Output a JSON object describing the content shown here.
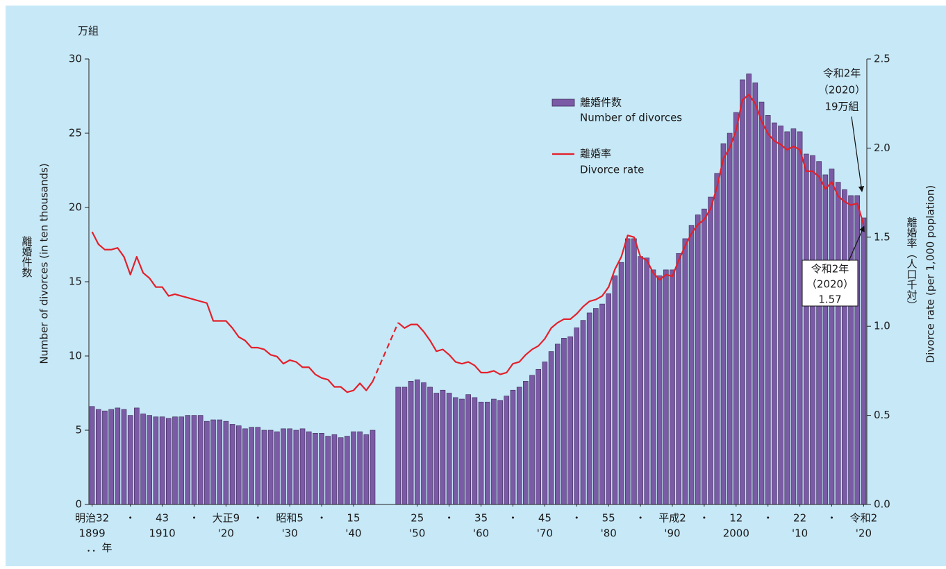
{
  "chart_data": {
    "type": "combo",
    "unit_label": "万組",
    "y_title_ja": "離婚件数",
    "y_title_en": "Number of divorces (in ten thousands)",
    "y2_title_ja": "離婚率（人口千対）",
    "y2_title_en": "Divorce rate (per 1,000 poplation)",
    "x_unit": "．．年",
    "x": [
      1899,
      1900,
      1901,
      1902,
      1903,
      1904,
      1905,
      1906,
      1907,
      1908,
      1909,
      1910,
      1911,
      1912,
      1913,
      1914,
      1915,
      1916,
      1917,
      1918,
      1919,
      1920,
      1921,
      1922,
      1923,
      1924,
      1925,
      1926,
      1927,
      1928,
      1929,
      1930,
      1931,
      1932,
      1933,
      1934,
      1935,
      1936,
      1937,
      1938,
      1939,
      1940,
      1941,
      1942,
      1943,
      1944,
      1945,
      1946,
      1947,
      1948,
      1949,
      1950,
      1951,
      1952,
      1953,
      1954,
      1955,
      1956,
      1957,
      1958,
      1959,
      1960,
      1961,
      1962,
      1963,
      1964,
      1965,
      1966,
      1967,
      1968,
      1969,
      1970,
      1971,
      1972,
      1973,
      1974,
      1975,
      1976,
      1977,
      1978,
      1979,
      1980,
      1981,
      1982,
      1983,
      1984,
      1985,
      1986,
      1987,
      1988,
      1989,
      1990,
      1991,
      1992,
      1993,
      1994,
      1995,
      1996,
      1997,
      1998,
      1999,
      2000,
      2001,
      2002,
      2003,
      2004,
      2005,
      2006,
      2007,
      2008,
      2009,
      2010,
      2011,
      2012,
      2013,
      2014,
      2015,
      2016,
      2017,
      2018,
      2019,
      2020
    ],
    "xlim": [
      1898.5,
      2020.5
    ],
    "xticks": [
      {
        "value": 1899,
        "label": "明治32"
      },
      {
        "value": 1905,
        "label": "・"
      },
      {
        "value": 1910,
        "label": "43"
      },
      {
        "value": 1915,
        "label": "・"
      },
      {
        "value": 1920,
        "label": "大正9"
      },
      {
        "value": 1925,
        "label": "・"
      },
      {
        "value": 1930,
        "label": "昭和5"
      },
      {
        "value": 1935,
        "label": "・"
      },
      {
        "value": 1940,
        "label": "15"
      },
      {
        "value": 1950,
        "label": "25"
      },
      {
        "value": 1955,
        "label": "・"
      },
      {
        "value": 1960,
        "label": "35"
      },
      {
        "value": 1965,
        "label": "・"
      },
      {
        "value": 1970,
        "label": "45"
      },
      {
        "value": 1975,
        "label": "・"
      },
      {
        "value": 1980,
        "label": "55"
      },
      {
        "value": 1985,
        "label": "・"
      },
      {
        "value": 1990,
        "label": "平成2"
      },
      {
        "value": 1995,
        "label": "・"
      },
      {
        "value": 2000,
        "label": "12"
      },
      {
        "value": 2005,
        "label": "・"
      },
      {
        "value": 2010,
        "label": "22"
      },
      {
        "value": 2015,
        "label": "・"
      },
      {
        "value": 2020,
        "label": "令和2"
      }
    ],
    "xticks_western": [
      1899,
      1910,
      {
        "value": 1920,
        "label": "'20"
      },
      {
        "value": 1930,
        "label": "'30"
      },
      {
        "value": 1940,
        "label": "'40"
      },
      {
        "value": 1950,
        "label": "'50"
      },
      {
        "value": 1960,
        "label": "'60"
      },
      {
        "value": 1970,
        "label": "'70"
      },
      {
        "value": 1980,
        "label": "'80"
      },
      {
        "value": 1990,
        "label": "'90"
      },
      2000,
      {
        "value": 2010,
        "label": "'10"
      },
      {
        "value": 2020,
        "label": "'20"
      }
    ],
    "ylim": [
      0,
      30
    ],
    "yticks": [
      0,
      5,
      10,
      15,
      20,
      25,
      30
    ],
    "y2lim": [
      0,
      2.5
    ],
    "y2ticks": [
      {
        "value": 0,
        "label": "0.0"
      },
      0.5,
      {
        "value": 1,
        "label": "1.0"
      },
      1.5,
      {
        "value": 2,
        "label": "2.0"
      },
      2.5
    ],
    "series": [
      {
        "name": "離婚件数",
        "name_en": "Number of divorces",
        "type": "bar",
        "color": "#7b5aa6",
        "values": [
          6.6,
          6.4,
          6.3,
          6.4,
          6.5,
          6.4,
          6.0,
          6.5,
          6.1,
          6.0,
          5.9,
          5.9,
          5.8,
          5.9,
          5.9,
          6.0,
          6.0,
          6.0,
          5.6,
          5.7,
          5.7,
          5.6,
          5.4,
          5.3,
          5.1,
          5.2,
          5.2,
          5.0,
          5.0,
          4.9,
          5.1,
          5.1,
          5.0,
          5.1,
          4.9,
          4.8,
          4.8,
          4.6,
          4.7,
          4.5,
          4.6,
          4.9,
          4.9,
          4.7,
          5.0,
          null,
          null,
          null,
          7.9,
          7.9,
          8.3,
          8.4,
          8.2,
          7.9,
          7.5,
          7.7,
          7.5,
          7.2,
          7.1,
          7.4,
          7.2,
          6.9,
          6.9,
          7.1,
          7.0,
          7.3,
          7.7,
          7.9,
          8.3,
          8.7,
          9.1,
          9.6,
          10.3,
          10.8,
          11.2,
          11.3,
          11.9,
          12.4,
          12.9,
          13.2,
          13.5,
          14.2,
          15.4,
          16.3,
          17.9,
          17.9,
          16.7,
          16.6,
          15.8,
          15.4,
          15.8,
          15.8,
          16.9,
          17.9,
          18.8,
          19.5,
          19.9,
          20.7,
          22.3,
          24.3,
          25.0,
          26.4,
          28.6,
          29.0,
          28.4,
          27.1,
          26.2,
          25.7,
          25.5,
          25.1,
          25.3,
          25.1,
          23.6,
          23.5,
          23.1,
          22.2,
          22.6,
          21.7,
          21.2,
          20.8,
          20.8,
          19.3
        ]
      },
      {
        "name": "離婚率",
        "name_en": "Divorce rate",
        "type": "line",
        "axis": "y2",
        "color": "#e3202a",
        "values": [
          1.53,
          1.46,
          1.43,
          1.43,
          1.44,
          1.39,
          1.29,
          1.39,
          1.3,
          1.27,
          1.22,
          1.22,
          1.17,
          1.18,
          1.17,
          1.16,
          1.15,
          1.14,
          1.13,
          1.03,
          1.03,
          1.03,
          0.99,
          0.94,
          0.92,
          0.88,
          0.88,
          0.87,
          0.84,
          0.83,
          0.79,
          0.81,
          0.8,
          0.77,
          0.77,
          0.73,
          0.71,
          0.7,
          0.66,
          0.66,
          0.63,
          0.64,
          0.68,
          0.64,
          0.69,
          null,
          null,
          null,
          1.02,
          0.99,
          1.01,
          1.01,
          0.97,
          0.92,
          0.86,
          0.87,
          0.84,
          0.8,
          0.79,
          0.8,
          0.78,
          0.74,
          0.74,
          0.75,
          0.73,
          0.74,
          0.79,
          0.8,
          0.84,
          0.87,
          0.89,
          0.93,
          0.99,
          1.02,
          1.04,
          1.04,
          1.07,
          1.11,
          1.14,
          1.15,
          1.17,
          1.22,
          1.32,
          1.39,
          1.51,
          1.5,
          1.39,
          1.37,
          1.3,
          1.26,
          1.29,
          1.28,
          1.37,
          1.45,
          1.52,
          1.57,
          1.6,
          1.66,
          1.78,
          1.94,
          2.0,
          2.1,
          2.27,
          2.3,
          2.25,
          2.15,
          2.08,
          2.04,
          2.02,
          1.99,
          2.01,
          1.99,
          1.87,
          1.87,
          1.84,
          1.77,
          1.81,
          1.73,
          1.7,
          1.68,
          1.69,
          1.57
        ]
      }
    ],
    "annotations": [
      {
        "lines": [
          "令和2年",
          "（2020）",
          "19万組"
        ]
      },
      {
        "lines": [
          "令和2年",
          "（2020）",
          "1.57"
        ]
      }
    ]
  }
}
